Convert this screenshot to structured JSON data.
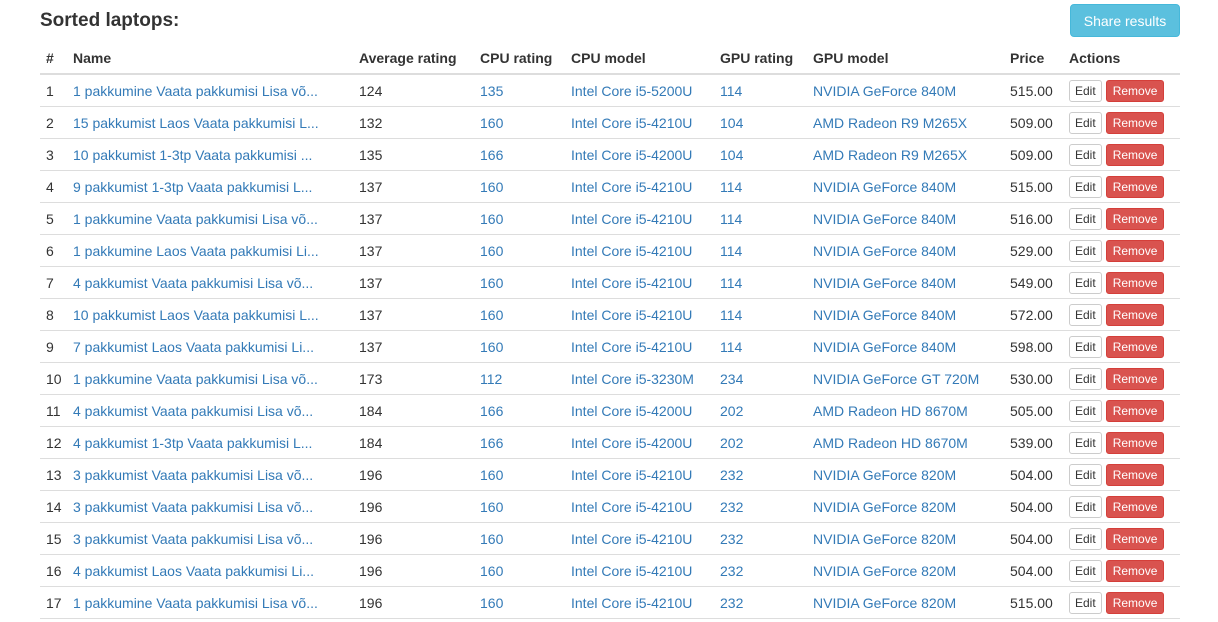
{
  "page": {
    "title": "Sorted laptops:",
    "share_label": "Share results"
  },
  "colors": {
    "link": "#337ab7",
    "share_button": "#5bc0de",
    "remove_button": "#d9534f"
  },
  "table": {
    "headers": {
      "num": "#",
      "name": "Name",
      "avg": "Average rating",
      "cpu_rating": "CPU rating",
      "cpu_model": "CPU model",
      "gpu_rating": "GPU rating",
      "gpu_model": "GPU model",
      "price": "Price",
      "actions": "Actions"
    },
    "edit_label": "Edit",
    "remove_label": "Remove",
    "rows": [
      {
        "num": "1",
        "name": "1 pakkumine Vaata pakkumisi Lisa võ...",
        "avg": "124",
        "cpu_rating": "135",
        "cpu_model": "Intel Core i5-5200U",
        "gpu_rating": "114",
        "gpu_model": "NVIDIA GeForce 840M",
        "price": "515.00"
      },
      {
        "num": "2",
        "name": "15 pakkumist Laos Vaata pakkumisi L...",
        "avg": "132",
        "cpu_rating": "160",
        "cpu_model": "Intel Core i5-4210U",
        "gpu_rating": "104",
        "gpu_model": "AMD Radeon R9 M265X",
        "price": "509.00"
      },
      {
        "num": "3",
        "name": "10 pakkumist 1-3tp Vaata pakkumisi ...",
        "avg": "135",
        "cpu_rating": "166",
        "cpu_model": "Intel Core i5-4200U",
        "gpu_rating": "104",
        "gpu_model": "AMD Radeon R9 M265X",
        "price": "509.00"
      },
      {
        "num": "4",
        "name": "9 pakkumist 1-3tp Vaata pakkumisi L...",
        "avg": "137",
        "cpu_rating": "160",
        "cpu_model": "Intel Core i5-4210U",
        "gpu_rating": "114",
        "gpu_model": "NVIDIA GeForce 840M",
        "price": "515.00"
      },
      {
        "num": "5",
        "name": "1 pakkumine Vaata pakkumisi Lisa võ...",
        "avg": "137",
        "cpu_rating": "160",
        "cpu_model": "Intel Core i5-4210U",
        "gpu_rating": "114",
        "gpu_model": "NVIDIA GeForce 840M",
        "price": "516.00"
      },
      {
        "num": "6",
        "name": "1 pakkumine Laos Vaata pakkumisi Li...",
        "avg": "137",
        "cpu_rating": "160",
        "cpu_model": "Intel Core i5-4210U",
        "gpu_rating": "114",
        "gpu_model": "NVIDIA GeForce 840M",
        "price": "529.00"
      },
      {
        "num": "7",
        "name": "4 pakkumist Vaata pakkumisi Lisa võ...",
        "avg": "137",
        "cpu_rating": "160",
        "cpu_model": "Intel Core i5-4210U",
        "gpu_rating": "114",
        "gpu_model": "NVIDIA GeForce 840M",
        "price": "549.00"
      },
      {
        "num": "8",
        "name": "10 pakkumist Laos Vaata pakkumisi L...",
        "avg": "137",
        "cpu_rating": "160",
        "cpu_model": "Intel Core i5-4210U",
        "gpu_rating": "114",
        "gpu_model": "NVIDIA GeForce 840M",
        "price": "572.00"
      },
      {
        "num": "9",
        "name": "7 pakkumist Laos Vaata pakkumisi Li...",
        "avg": "137",
        "cpu_rating": "160",
        "cpu_model": "Intel Core i5-4210U",
        "gpu_rating": "114",
        "gpu_model": "NVIDIA GeForce 840M",
        "price": "598.00"
      },
      {
        "num": "10",
        "name": "1 pakkumine Vaata pakkumisi Lisa võ...",
        "avg": "173",
        "cpu_rating": "112",
        "cpu_model": "Intel Core i5-3230M",
        "gpu_rating": "234",
        "gpu_model": "NVIDIA GeForce GT 720M",
        "price": "530.00"
      },
      {
        "num": "11",
        "name": "4 pakkumist Vaata pakkumisi Lisa võ...",
        "avg": "184",
        "cpu_rating": "166",
        "cpu_model": "Intel Core i5-4200U",
        "gpu_rating": "202",
        "gpu_model": "AMD Radeon HD 8670M",
        "price": "505.00"
      },
      {
        "num": "12",
        "name": "4 pakkumist 1-3tp Vaata pakkumisi L...",
        "avg": "184",
        "cpu_rating": "166",
        "cpu_model": "Intel Core i5-4200U",
        "gpu_rating": "202",
        "gpu_model": "AMD Radeon HD 8670M",
        "price": "539.00"
      },
      {
        "num": "13",
        "name": "3 pakkumist Vaata pakkumisi Lisa võ...",
        "avg": "196",
        "cpu_rating": "160",
        "cpu_model": "Intel Core i5-4210U",
        "gpu_rating": "232",
        "gpu_model": "NVIDIA GeForce 820M",
        "price": "504.00"
      },
      {
        "num": "14",
        "name": "3 pakkumist Vaata pakkumisi Lisa võ...",
        "avg": "196",
        "cpu_rating": "160",
        "cpu_model": "Intel Core i5-4210U",
        "gpu_rating": "232",
        "gpu_model": "NVIDIA GeForce 820M",
        "price": "504.00"
      },
      {
        "num": "15",
        "name": "3 pakkumist Vaata pakkumisi Lisa võ...",
        "avg": "196",
        "cpu_rating": "160",
        "cpu_model": "Intel Core i5-4210U",
        "gpu_rating": "232",
        "gpu_model": "NVIDIA GeForce 820M",
        "price": "504.00"
      },
      {
        "num": "16",
        "name": "4 pakkumist Laos Vaata pakkumisi Li...",
        "avg": "196",
        "cpu_rating": "160",
        "cpu_model": "Intel Core i5-4210U",
        "gpu_rating": "232",
        "gpu_model": "NVIDIA GeForce 820M",
        "price": "504.00"
      },
      {
        "num": "17",
        "name": "1 pakkumine Vaata pakkumisi Lisa võ...",
        "avg": "196",
        "cpu_rating": "160",
        "cpu_model": "Intel Core i5-4210U",
        "gpu_rating": "232",
        "gpu_model": "NVIDIA GeForce 820M",
        "price": "515.00"
      }
    ]
  }
}
